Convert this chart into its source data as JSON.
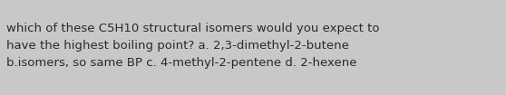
{
  "lines": [
    "which of these C5H10 structural isomers would you expect to",
    "have the highest boiling point? a. 2,3-dimethyl-2-butene",
    "b.isomers, so same BP c. 4-methyl-2-pentene d. 2-hexene"
  ],
  "background_color": "#c8c8c8",
  "text_color": "#2a2a2a",
  "font_size": 9.5,
  "fig_width": 5.58,
  "fig_height": 1.05,
  "dpi": 100
}
